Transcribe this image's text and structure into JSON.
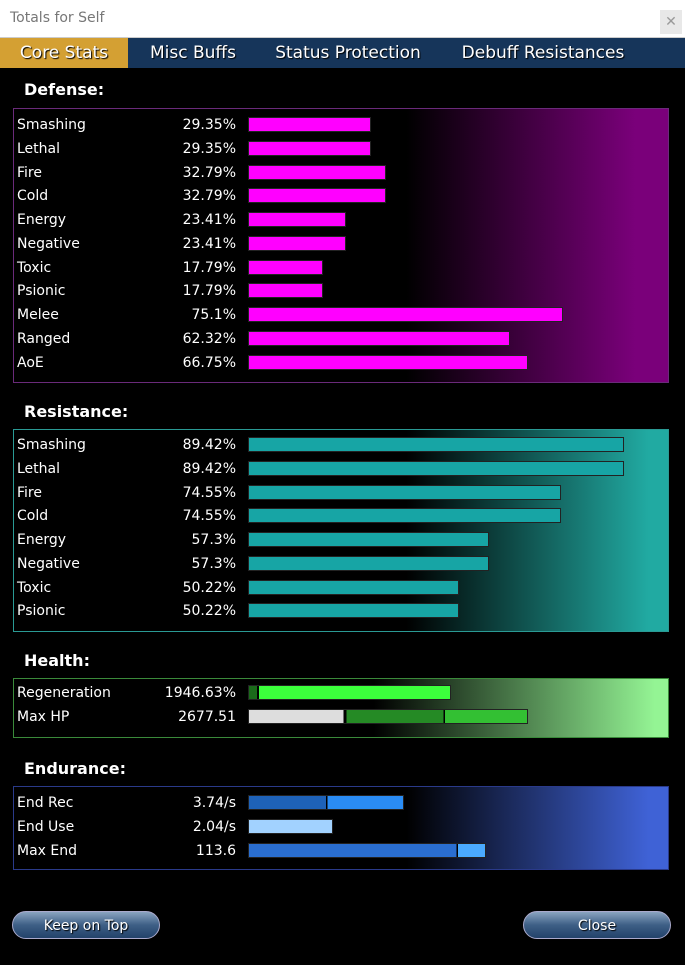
{
  "window": {
    "title": "Totals for Self"
  },
  "tabs": [
    "Core Stats",
    "Misc Buffs",
    "Status Protection",
    "Debuff Resistances"
  ],
  "sections": [
    {
      "title": "Defense:",
      "rows": [
        {
          "label": "Smashing",
          "value": 29.35,
          "value_label": "29.35%"
        },
        {
          "label": "Lethal",
          "value": 29.35,
          "value_label": "29.35%"
        },
        {
          "label": "Fire",
          "value": 32.79,
          "value_label": "32.79%"
        },
        {
          "label": "Cold",
          "value": 32.79,
          "value_label": "32.79%"
        },
        {
          "label": "Energy",
          "value": 23.41,
          "value_label": "23.41%"
        },
        {
          "label": "Negative",
          "value": 23.41,
          "value_label": "23.41%"
        },
        {
          "label": "Toxic",
          "value": 17.79,
          "value_label": "17.79%"
        },
        {
          "label": "Psionic",
          "value": 17.79,
          "value_label": "17.79%"
        },
        {
          "label": "Melee",
          "value": 75.1,
          "value_label": "75.1%"
        },
        {
          "label": "Ranged",
          "value": 62.32,
          "value_label": "62.32%"
        },
        {
          "label": "AoE",
          "value": 66.75,
          "value_label": "66.75%"
        }
      ]
    },
    {
      "title": "Resistance:",
      "rows": [
        {
          "label": "Smashing",
          "value": 89.42,
          "value_label": "89.42%"
        },
        {
          "label": "Lethal",
          "value": 89.42,
          "value_label": "89.42%"
        },
        {
          "label": "Fire",
          "value": 74.55,
          "value_label": "74.55%"
        },
        {
          "label": "Cold",
          "value": 74.55,
          "value_label": "74.55%"
        },
        {
          "label": "Energy",
          "value": 57.3,
          "value_label": "57.3%"
        },
        {
          "label": "Negative",
          "value": 57.3,
          "value_label": "57.3%"
        },
        {
          "label": "Toxic",
          "value": 50.22,
          "value_label": "50.22%"
        },
        {
          "label": "Psionic",
          "value": 50.22,
          "value_label": "50.22%"
        }
      ]
    },
    {
      "title": "Health:",
      "rows": [
        {
          "label": "Regeneration",
          "value": 1946.63,
          "value_label": "1946.63%"
        },
        {
          "label": "Max HP",
          "value": 2677.51,
          "value_label": "2677.51"
        }
      ]
    },
    {
      "title": "Endurance:",
      "rows": [
        {
          "label": "End Rec",
          "value": 3.74,
          "value_label": "3.74/s"
        },
        {
          "label": "End Use",
          "value": 2.04,
          "value_label": "2.04/s"
        },
        {
          "label": "Max End",
          "value": 113.6,
          "value_label": "113.6"
        }
      ]
    }
  ],
  "buttons": [
    "Keep on Top",
    "Close"
  ]
}
